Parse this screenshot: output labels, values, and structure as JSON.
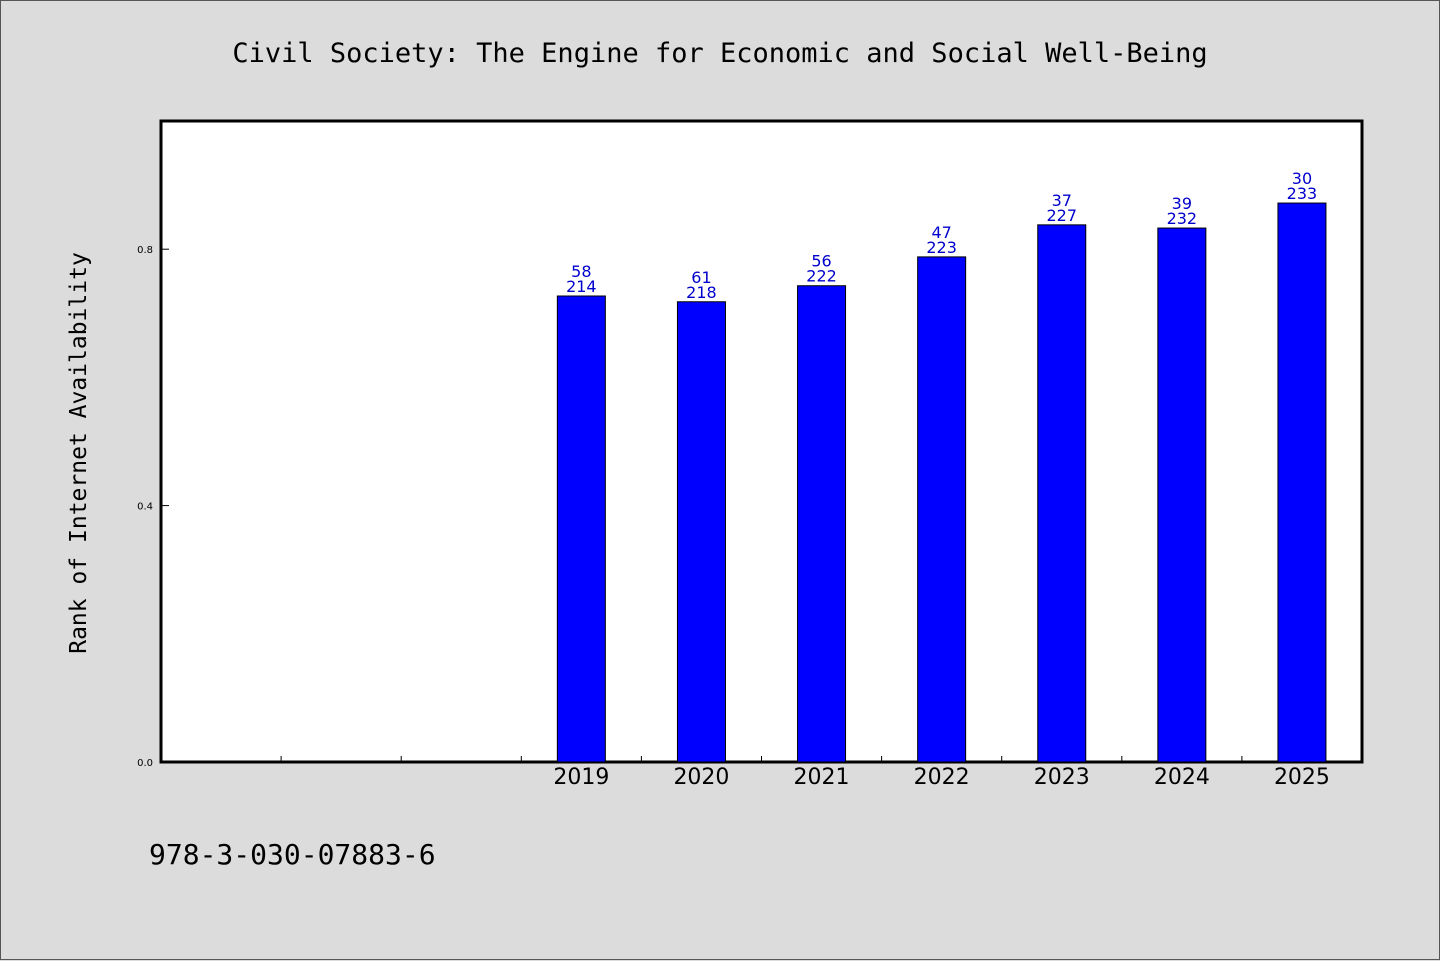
{
  "chart_data": {
    "type": "bar",
    "title": "Civil Society: The Engine for Economic and Social Well-Being",
    "xlabel": "",
    "ylabel": "Rank of Internet Availability",
    "categories": [
      "",
      "",
      "",
      "2019",
      "2020",
      "2021",
      "2022",
      "2023",
      "2024",
      "2025"
    ],
    "values": [
      null,
      null,
      null,
      0.727,
      0.718,
      0.743,
      0.788,
      0.838,
      0.833,
      0.872
    ],
    "data_labels": [
      {
        "top": "",
        "bottom": ""
      },
      {
        "top": "",
        "bottom": ""
      },
      {
        "top": "",
        "bottom": ""
      },
      {
        "top": "58",
        "bottom": "214"
      },
      {
        "top": "61",
        "bottom": "218"
      },
      {
        "top": "56",
        "bottom": "222"
      },
      {
        "top": "47",
        "bottom": "223"
      },
      {
        "top": "37",
        "bottom": "227"
      },
      {
        "top": "39",
        "bottom": "232"
      },
      {
        "top": "30",
        "bottom": "233"
      }
    ],
    "ylim": [
      0.0,
      1.0
    ],
    "yticks": [
      0.0,
      0.4,
      0.8
    ],
    "ytick_labels": [
      "0.0",
      "0.4",
      "0.8"
    ],
    "grid": false,
    "legend": "none",
    "colors": {
      "bar_fill": "#0000ff",
      "bar_stroke": "#000000",
      "data_label": "#0000cc",
      "page_background": "#dcdcdc",
      "plot_background": "#ffffff"
    }
  },
  "footer": {
    "isbn": "978-3-030-07883-6"
  }
}
